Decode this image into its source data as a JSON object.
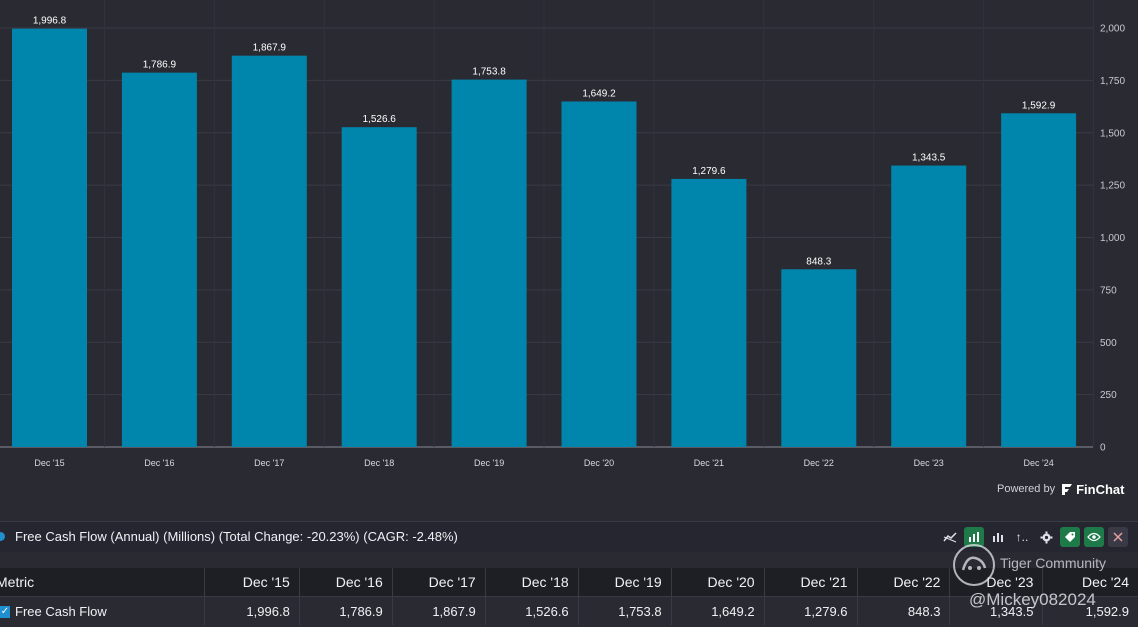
{
  "chart_data": {
    "type": "bar",
    "categories": [
      "Dec '15",
      "Dec '16",
      "Dec '17",
      "Dec '18",
      "Dec '19",
      "Dec '20",
      "Dec '21",
      "Dec '22",
      "Dec '23",
      "Dec '24"
    ],
    "values": [
      1996.8,
      1786.9,
      1867.9,
      1526.6,
      1753.8,
      1649.2,
      1279.6,
      848.3,
      1343.5,
      1592.9
    ],
    "value_labels": [
      "1,996.8",
      "1,786.9",
      "1,867.9",
      "1,526.6",
      "1,753.8",
      "1,649.2",
      "1,279.6",
      "848.3",
      "1,343.5",
      "1,592.9"
    ],
    "y_ticks": [
      0,
      250,
      500,
      750,
      1000,
      1250,
      1500,
      1750,
      2000
    ],
    "y_tick_labels": [
      "0",
      "250",
      "500",
      "750",
      "1,000",
      "1,250",
      "1,500",
      "1,750",
      "2,000"
    ],
    "ylim": [
      0,
      2000
    ],
    "yaxis_position": "right",
    "grid": true,
    "series_name": "Free Cash Flow",
    "bar_color": "#0086ad"
  },
  "powered_by": {
    "label": "Powered by",
    "brand": "FinChat"
  },
  "metric_header": {
    "title": "Free Cash Flow (Annual) (Millions) (Total Change: -20.23%) (CAGR: -2.48%)",
    "dot_color": "#1f8fd0"
  },
  "toolbar": {
    "icons": [
      "trend-icon",
      "bar-chart-icon",
      "bar-chart-alt-icon",
      "sort-icon",
      "gear-icon",
      "tag-icon",
      "eye-icon",
      "close-icon"
    ],
    "sort_label": "↑.."
  },
  "table": {
    "metric_header": "Metric",
    "columns": [
      "Dec '15",
      "Dec '16",
      "Dec '17",
      "Dec '18",
      "Dec '19",
      "Dec '20",
      "Dec '21",
      "Dec '22",
      "Dec '23",
      "Dec '24"
    ],
    "rows": [
      {
        "name": "Free Cash Flow",
        "values": [
          "1,996.8",
          "1,786.9",
          "1,867.9",
          "1,526.6",
          "1,753.8",
          "1,649.2",
          "1,279.6",
          "848.3",
          "1,343.5",
          "1,592.9"
        ]
      }
    ]
  },
  "watermark": {
    "name": "Tiger Community",
    "handle": "@Mickey082024"
  }
}
